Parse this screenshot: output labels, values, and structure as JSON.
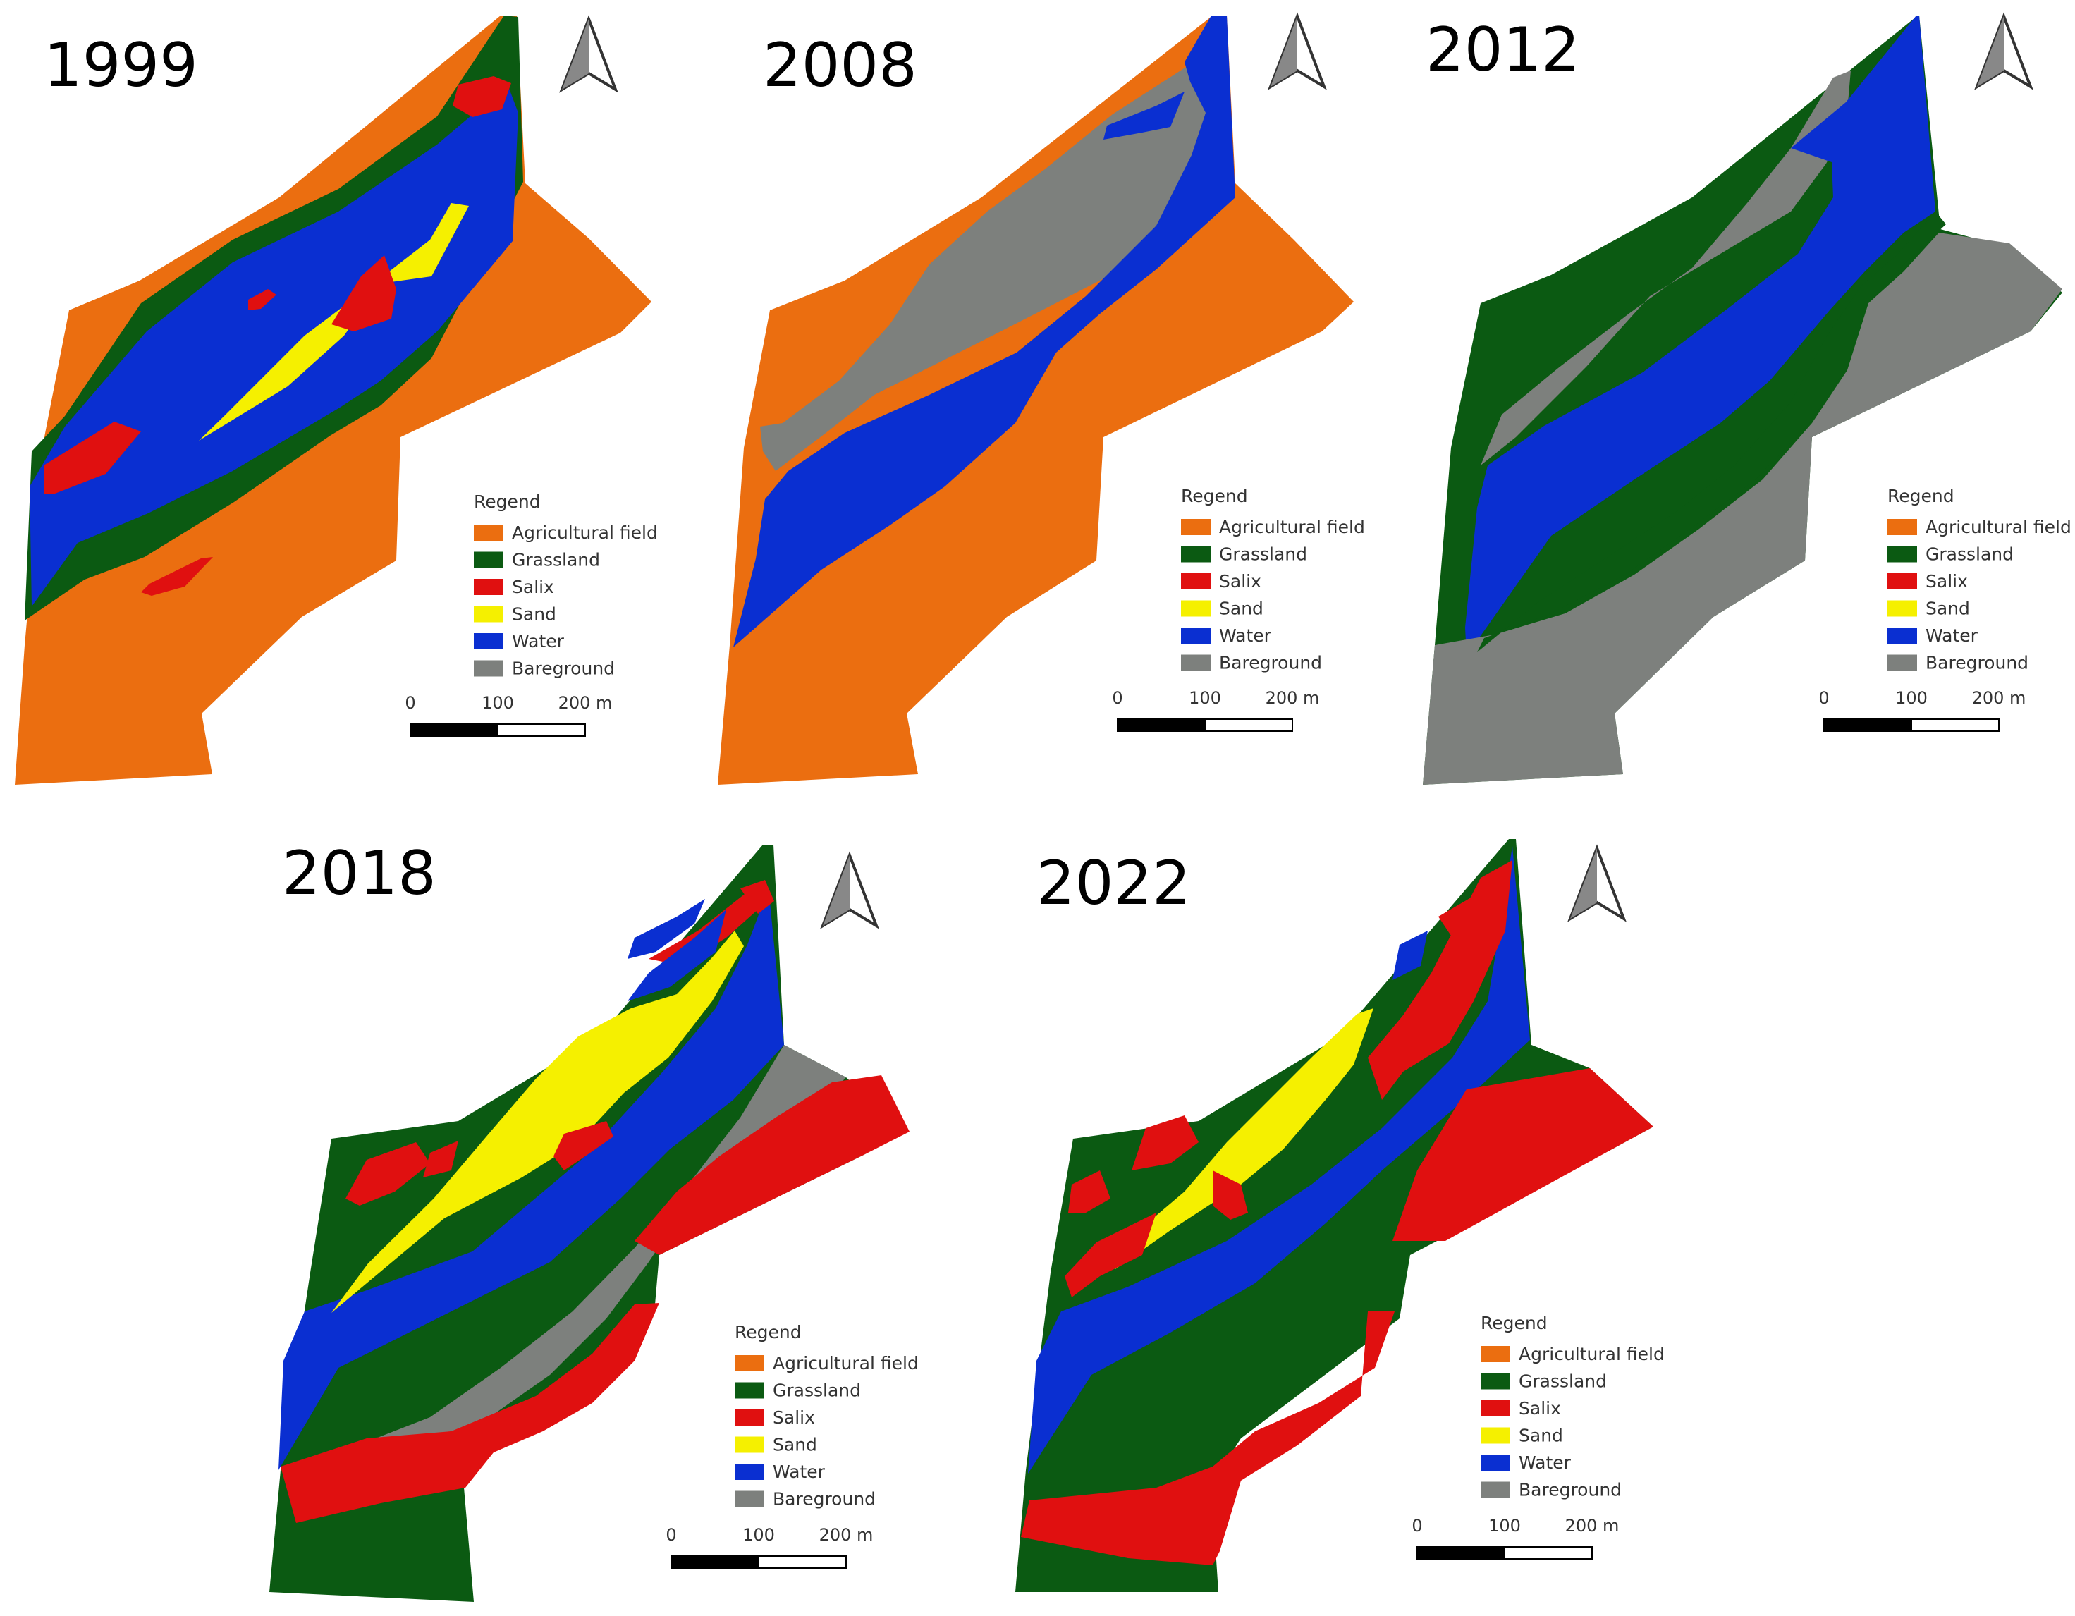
{
  "colors": {
    "agricultural": "#eb6e10",
    "grassland": "#0b5a12",
    "salix": "#e01010",
    "sand": "#f5f000",
    "water": "#0a2fd1",
    "bareground": "#7d807d"
  },
  "legend": {
    "title": "Regend",
    "items": [
      {
        "key": "agricultural",
        "label": "Agricultural field"
      },
      {
        "key": "grassland",
        "label": "Grassland"
      },
      {
        "key": "salix",
        "label": "Salix"
      },
      {
        "key": "sand",
        "label": "Sand"
      },
      {
        "key": "water",
        "label": "Water"
      },
      {
        "key": "bareground",
        "label": "Bareground"
      }
    ]
  },
  "scale_bar": {
    "ticks": [
      "0",
      "100",
      "200 m"
    ]
  },
  "north_arrow_icon": "north-arrow-icon",
  "panels": [
    {
      "id": "1999",
      "year": "1999",
      "dominant_classes": [
        "agricultural",
        "grassland",
        "water",
        "sand",
        "salix"
      ]
    },
    {
      "id": "2008",
      "year": "2008",
      "dominant_classes": [
        "agricultural",
        "bareground",
        "water"
      ]
    },
    {
      "id": "2012",
      "year": "2012",
      "dominant_classes": [
        "grassland",
        "bareground",
        "water"
      ]
    },
    {
      "id": "2018",
      "year": "2018",
      "dominant_classes": [
        "grassland",
        "sand",
        "salix",
        "water",
        "bareground"
      ]
    },
    {
      "id": "2022",
      "year": "2022",
      "dominant_classes": [
        "grassland",
        "salix",
        "sand",
        "water"
      ]
    }
  ]
}
